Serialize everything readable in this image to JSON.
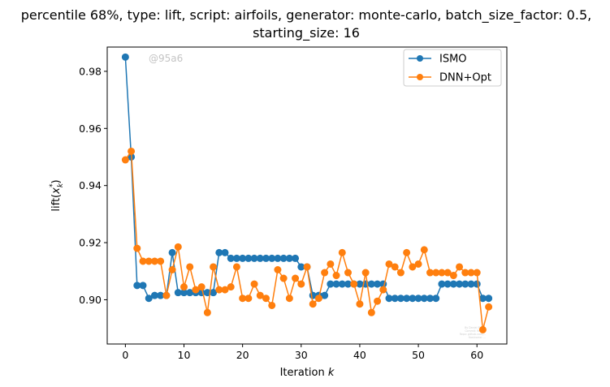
{
  "chart_data": {
    "type": "line",
    "title": [
      "percentile 68%, type: lift, script: airfoils, generator: monte-carlo, batch_size_factor: 0.5,",
      "starting_size: 16"
    ],
    "xlabel": "Iteration",
    "xlabel_var": "k",
    "ylabel_prefix": "lift(",
    "ylabel_var": "x",
    "ylabel_sub": "k",
    "ylabel_sup": "*",
    "ylabel_suffix": ")",
    "xlim": [
      -3.1,
      65.1
    ],
    "ylim": [
      0.8845,
      0.9885
    ],
    "xticks": [
      0,
      10,
      20,
      30,
      40,
      50,
      60
    ],
    "yticks": [
      0.9,
      0.92,
      0.94,
      0.96,
      0.98
    ],
    "ytick_labels": [
      "0.90",
      "0.92",
      "0.94",
      "0.96",
      "0.98"
    ],
    "legend_position": "top-right",
    "watermark": "@95a6",
    "fineprint": [
      "By Daniel Stram",
      "Commit: 9ba6...",
      "Repo: github.com/...",
      "Hostname: ..."
    ],
    "series": [
      {
        "name": "ISMO",
        "color": "#1f77b4",
        "x": [
          0,
          1,
          2,
          3,
          4,
          5,
          6,
          7,
          8,
          9,
          10,
          11,
          12,
          13,
          14,
          15,
          16,
          17,
          18,
          19,
          20,
          21,
          22,
          23,
          24,
          25,
          26,
          27,
          28,
          29,
          30,
          31,
          32,
          33,
          34,
          35,
          36,
          37,
          38,
          39,
          40,
          41,
          42,
          43,
          44,
          45,
          46,
          47,
          48,
          49,
          50,
          51,
          52,
          53,
          54,
          55,
          56,
          57,
          58,
          59,
          60,
          61,
          62
        ],
        "values": [
          0.985,
          0.95,
          0.905,
          0.905,
          0.9005,
          0.9015,
          0.9015,
          0.9015,
          0.9165,
          0.9025,
          0.9025,
          0.9025,
          0.9025,
          0.9025,
          0.9025,
          0.9025,
          0.9165,
          0.9165,
          0.9145,
          0.9145,
          0.9145,
          0.9145,
          0.9145,
          0.9145,
          0.9145,
          0.9145,
          0.9145,
          0.9145,
          0.9145,
          0.9145,
          0.9115,
          0.9115,
          0.9015,
          0.9015,
          0.9015,
          0.9055,
          0.9055,
          0.9055,
          0.9055,
          0.9055,
          0.9055,
          0.9055,
          0.9055,
          0.9055,
          0.9055,
          0.9005,
          0.9005,
          0.9005,
          0.9005,
          0.9005,
          0.9005,
          0.9005,
          0.9005,
          0.9005,
          0.9055,
          0.9055,
          0.9055,
          0.9055,
          0.9055,
          0.9055,
          0.9055,
          0.9005,
          0.9005
        ]
      },
      {
        "name": "DNN+Opt",
        "color": "#ff7f0e",
        "x": [
          0,
          1,
          2,
          3,
          4,
          5,
          6,
          7,
          8,
          9,
          10,
          11,
          12,
          13,
          14,
          15,
          16,
          17,
          18,
          19,
          20,
          21,
          22,
          23,
          24,
          25,
          26,
          27,
          28,
          29,
          30,
          31,
          32,
          33,
          34,
          35,
          36,
          37,
          38,
          39,
          40,
          41,
          42,
          43,
          44,
          45,
          46,
          47,
          48,
          49,
          50,
          51,
          52,
          53,
          54,
          55,
          56,
          57,
          58,
          59,
          60,
          61,
          62
        ],
        "values": [
          0.949,
          0.952,
          0.918,
          0.9135,
          0.9135,
          0.9135,
          0.9135,
          0.9015,
          0.9105,
          0.9185,
          0.9045,
          0.9115,
          0.9035,
          0.9045,
          0.8955,
          0.9115,
          0.9035,
          0.9035,
          0.9045,
          0.9115,
          0.9005,
          0.9005,
          0.9055,
          0.9015,
          0.9005,
          0.898,
          0.9105,
          0.9075,
          0.9005,
          0.9075,
          0.9055,
          0.9115,
          0.8985,
          0.9005,
          0.9095,
          0.9125,
          0.9085,
          0.9165,
          0.9095,
          0.9055,
          0.8985,
          0.9095,
          0.8955,
          0.8995,
          0.9035,
          0.9125,
          0.9115,
          0.9095,
          0.9165,
          0.9115,
          0.9125,
          0.9175,
          0.9095,
          0.9095,
          0.9095,
          0.9095,
          0.9085,
          0.9115,
          0.9095,
          0.9095,
          0.9095,
          0.8895,
          0.8975
        ]
      }
    ]
  }
}
